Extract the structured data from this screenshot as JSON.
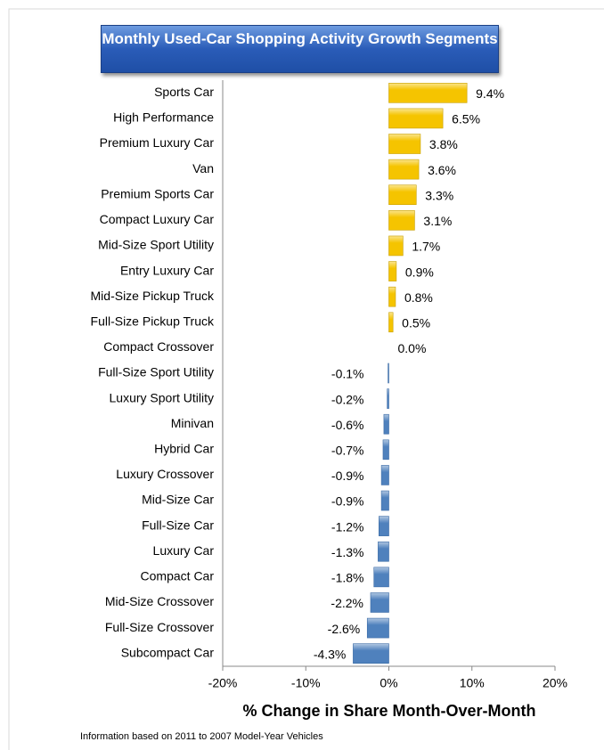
{
  "chart_data": {
    "type": "bar",
    "orientation": "horizontal",
    "title": "Monthly Used-Car Shopping Activity Growth Segments",
    "xlabel": "% Change in Share Month-Over-Month",
    "footnote": "Information based  on 2011 to 2007 Model-Year Vehicles",
    "categories": [
      "Sports Car",
      "High Performance",
      "Premium Luxury Car",
      "Van",
      "Premium Sports Car",
      "Compact Luxury Car",
      "Mid-Size Sport Utility",
      "Entry Luxury Car",
      "Mid-Size Pickup Truck",
      "Full-Size Pickup Truck",
      "Compact Crossover",
      "Full-Size Sport Utility",
      "Luxury Sport Utility",
      "Minivan",
      "Hybrid Car",
      "Luxury Crossover",
      "Mid-Size Car",
      "Full-Size Car",
      "Luxury Car",
      "Compact Car",
      "Mid-Size Crossover",
      "Full-Size Crossover",
      "Subcompact Car"
    ],
    "values": [
      9.4,
      6.5,
      3.8,
      3.6,
      3.3,
      3.1,
      1.7,
      0.9,
      0.8,
      0.5,
      0.0,
      -0.1,
      -0.2,
      -0.6,
      -0.7,
      -0.9,
      -0.9,
      -1.2,
      -1.3,
      -1.8,
      -2.2,
      -2.6,
      -4.3
    ],
    "value_labels": [
      "9.4%",
      "6.5%",
      "3.8%",
      "3.6%",
      "3.3%",
      "3.1%",
      "1.7%",
      "0.9%",
      "0.8%",
      "0.5%",
      "0.0%",
      "-0.1%",
      "-0.2%",
      "-0.6%",
      "-0.7%",
      "-0.9%",
      "-0.9%",
      "-1.2%",
      "-1.3%",
      "-1.8%",
      "-2.2%",
      "-2.6%",
      "-4.3%"
    ],
    "positive_color": "#f5c400",
    "negative_color": "#4f81bd",
    "xlim": [
      -20,
      20
    ],
    "xticks": [
      {
        "value": -20,
        "label": "-20%"
      },
      {
        "value": -10,
        "label": "-10%"
      },
      {
        "value": 0,
        "label": "0%"
      },
      {
        "value": 10,
        "label": "10%"
      },
      {
        "value": 20,
        "label": "20%"
      }
    ]
  }
}
